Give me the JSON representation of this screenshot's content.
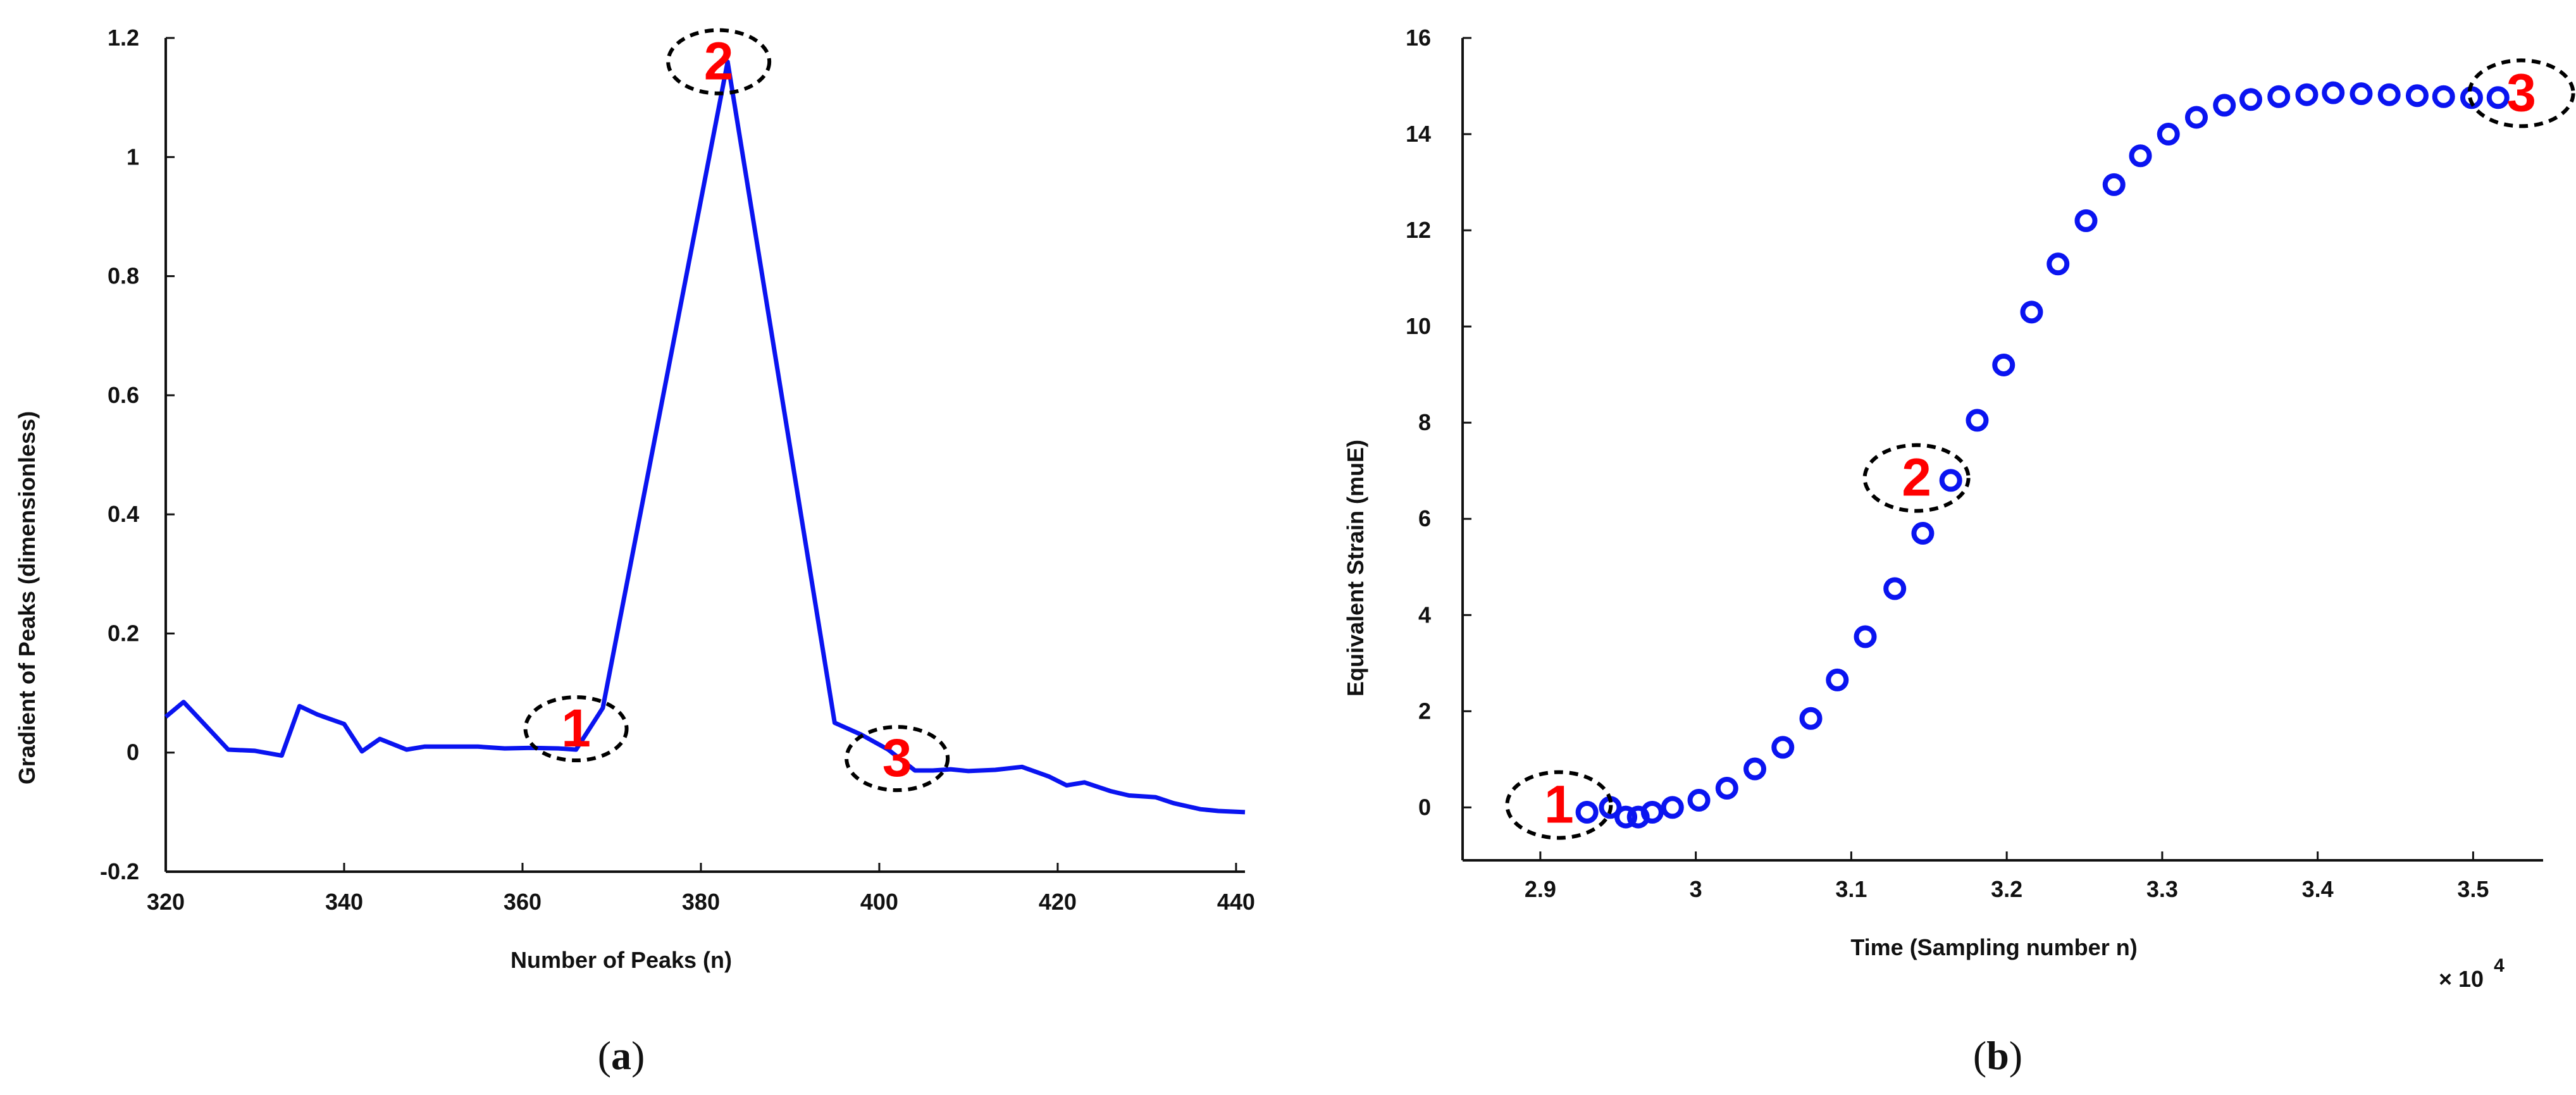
{
  "colors": {
    "series": "#0a14f0",
    "annotation_text": "#ff0000",
    "annotation_ring": "#000000",
    "axis": "#111111"
  },
  "panels": [
    {
      "label_open": "(",
      "label_letter": "a",
      "label_close": ")"
    },
    {
      "label_open": "(",
      "label_letter": "b",
      "label_close": ")"
    }
  ],
  "chart_data": [
    {
      "type": "line",
      "panel": "a",
      "xlabel": "Number of Peaks (n)",
      "ylabel": "Gradient of Peaks (dimensionless)",
      "xlim": [
        320,
        441
      ],
      "ylim": [
        -0.2,
        1.2
      ],
      "xticks": [
        320,
        340,
        360,
        380,
        400,
        420,
        440
      ],
      "xtick_labels": [
        "320",
        "340",
        "360",
        "380",
        "400",
        "420",
        "440"
      ],
      "yticks": [
        -0.2,
        0,
        0.2,
        0.4,
        0.6,
        0.8,
        1,
        1.2
      ],
      "ytick_labels": [
        "-0.2",
        "0",
        "0.2",
        "0.4",
        "0.6",
        "0.8",
        "1",
        "1.2"
      ],
      "series": [
        {
          "name": "gradient",
          "x": [
            320,
            322,
            327,
            330,
            333,
            335,
            337,
            340,
            342,
            344,
            347,
            349,
            352,
            355,
            358,
            361,
            364,
            366,
            369,
            383,
            395,
            398,
            401,
            404,
            406,
            408,
            410,
            413,
            416,
            419,
            421,
            423,
            426,
            428,
            431,
            433,
            436,
            438,
            441
          ],
          "y": [
            0.06,
            0.085,
            0.005,
            0.003,
            -0.005,
            0.078,
            0.064,
            0.048,
            0.002,
            0.023,
            0.005,
            0.01,
            0.01,
            0.01,
            0.007,
            0.008,
            0.007,
            0.005,
            0.075,
            1.16,
            0.05,
            0.03,
            0.005,
            -0.03,
            -0.03,
            -0.028,
            -0.031,
            -0.029,
            -0.024,
            -0.04,
            -0.055,
            -0.05,
            -0.065,
            -0.072,
            -0.075,
            -0.085,
            -0.095,
            -0.098,
            -0.1
          ]
        }
      ],
      "annotations": [
        {
          "text": "1",
          "x": 366,
          "y": 0.04
        },
        {
          "text": "2",
          "x": 382,
          "y": 1.16
        },
        {
          "text": "3",
          "x": 402,
          "y": -0.01
        }
      ]
    },
    {
      "type": "scatter",
      "panel": "b",
      "xlabel": "Time (Sampling number n)",
      "ylabel": "Equivalent Strain (muE)",
      "exponent_label": "× 10",
      "exponent_power": "4",
      "xlim": [
        28.5,
        35.45
      ],
      "ylim": [
        -1.1,
        16
      ],
      "xticks": [
        29,
        30,
        31,
        32,
        33,
        34,
        35
      ],
      "xtick_labels": [
        "2.9",
        "3",
        "3.1",
        "3.2",
        "3.3",
        "3.4",
        "3.5"
      ],
      "yticks": [
        0,
        2,
        4,
        6,
        8,
        10,
        12,
        14,
        16
      ],
      "ytick_labels": [
        "0",
        "2",
        "4",
        "6",
        "8",
        "10",
        "12",
        "14",
        "16"
      ],
      "series": [
        {
          "name": "strain",
          "x": [
            29.3,
            29.45,
            29.55,
            29.63,
            29.72,
            29.85,
            30.02,
            30.2,
            30.38,
            30.56,
            30.74,
            30.91,
            31.09,
            31.28,
            31.46,
            31.64,
            31.81,
            31.98,
            32.16,
            32.33,
            32.51,
            32.69,
            32.86,
            33.04,
            33.22,
            33.4,
            33.57,
            33.75,
            33.93,
            34.1,
            34.28,
            34.46,
            34.64,
            34.81,
            34.99,
            35.16
          ],
          "y": [
            -0.1,
            0,
            -0.2,
            -0.2,
            -0.1,
            0,
            0.15,
            0.4,
            0.8,
            1.25,
            1.85,
            2.65,
            3.55,
            4.55,
            5.7,
            6.8,
            8.05,
            9.2,
            10.3,
            11.3,
            12.2,
            12.95,
            13.55,
            14.0,
            14.35,
            14.6,
            14.72,
            14.78,
            14.82,
            14.86,
            14.84,
            14.82,
            14.8,
            14.78,
            14.76,
            14.76
          ]
        }
      ],
      "annotations": [
        {
          "text": "1",
          "x": 29.12,
          "y": 0.05
        },
        {
          "text": "2",
          "x": 31.42,
          "y": 6.85
        },
        {
          "text": "3",
          "x": 35.31,
          "y": 14.85
        }
      ]
    }
  ]
}
